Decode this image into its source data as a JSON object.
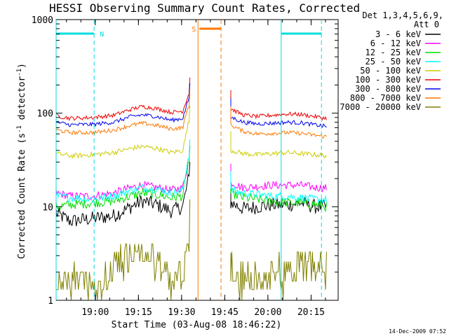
{
  "chart_data": {
    "type": "line",
    "title": "HESSI Observing Summary Count Rates, Corrected",
    "xlabel": "Start Time (03-Aug-08 18:46:22)",
    "ylabel": "Corrected Count Rate (s",
    "ylabel_sup1": "-1",
    "ylabel_mid": " detector",
    "ylabel_sup2": "-1",
    "ylabel_end": ")",
    "x_unit": "minutes after 18:46:22 UT",
    "xlim": [
      0,
      98
    ],
    "ylim": [
      1,
      1000
    ],
    "yscale": "log",
    "xticks": [
      {
        "value": 13.6,
        "label": "19:00"
      },
      {
        "value": 28.6,
        "label": "19:15"
      },
      {
        "value": 43.6,
        "label": "19:30"
      },
      {
        "value": 58.6,
        "label": "19:45"
      },
      {
        "value": 73.6,
        "label": "20:00"
      },
      {
        "value": 88.6,
        "label": "20:15"
      }
    ],
    "yticks": [
      {
        "value": 1,
        "label": "1"
      },
      {
        "value": 10,
        "label": "10"
      },
      {
        "value": 100,
        "label": "100"
      },
      {
        "value": 1000,
        "label": "1000"
      }
    ],
    "legend": {
      "header_line1": "Det 1,3,4,5,6,9,",
      "header_line2": "Att 0",
      "placement": "right"
    },
    "series": [
      {
        "name": "3 - 6 keV",
        "color": "#000000",
        "values_by_x": {
          "x": [
            0,
            5,
            13,
            20,
            26,
            30,
            35,
            40,
            44,
            46
          ],
          "y": [
            8.5,
            7,
            7.5,
            8,
            10,
            11.5,
            10.5,
            9,
            10,
            20
          ]
        },
        "post_x": [
          61,
          65,
          70,
          75,
          80,
          85,
          90,
          94
        ],
        "post_y": [
          11,
          9.5,
          10,
          10.5,
          10.5,
          11,
          10,
          10
        ]
      },
      {
        "name": "6 - 12 keV",
        "color": "#ff00ff",
        "values_by_x": {
          "x": [
            0,
            5,
            13,
            20,
            26,
            30,
            35,
            40,
            44,
            46
          ],
          "y": [
            14,
            13,
            13,
            14,
            16,
            17,
            16,
            15,
            16,
            30
          ]
        },
        "post_x": [
          61,
          65,
          70,
          75,
          80,
          85,
          90,
          94
        ],
        "post_y": [
          18,
          16,
          16.5,
          17,
          17,
          17,
          16,
          16
        ]
      },
      {
        "name": "12 - 25 keV",
        "color": "#00dd00",
        "values_by_x": {
          "x": [
            0,
            5,
            13,
            20,
            26,
            30,
            35,
            40,
            44,
            46
          ],
          "y": [
            10,
            10.5,
            11,
            11.5,
            13,
            14,
            13.5,
            12.5,
            13,
            30
          ]
        },
        "post_x": [
          61,
          65,
          70,
          75,
          80,
          85,
          90,
          94
        ],
        "post_y": [
          14,
          12.5,
          12,
          11.5,
          11,
          11,
          10.5,
          10
        ]
      },
      {
        "name": "25 - 50 keV",
        "color": "#00ffff",
        "values_by_x": {
          "x": [
            0,
            5,
            13,
            20,
            26,
            30,
            35,
            40,
            44,
            46
          ],
          "y": [
            13,
            12.5,
            12,
            13,
            15,
            16,
            15.5,
            14,
            15,
            35
          ]
        },
        "post_x": [
          61,
          65,
          70,
          75,
          80,
          85,
          90,
          94
        ],
        "post_y": [
          15,
          14,
          13.5,
          13,
          13,
          12.5,
          12,
          12
        ]
      },
      {
        "name": "50 - 100 keV",
        "color": "#cccc00",
        "values_by_x": {
          "x": [
            0,
            5,
            13,
            20,
            26,
            30,
            35,
            40,
            44,
            46
          ],
          "y": [
            37,
            35,
            36,
            38,
            42,
            44,
            42,
            38,
            40,
            80
          ]
        },
        "post_x": [
          61,
          65,
          70,
          75,
          80,
          85,
          90,
          94
        ],
        "post_y": [
          40,
          37,
          36,
          37,
          38,
          37,
          36,
          35
        ]
      },
      {
        "name": "100 - 300 keV",
        "color": "#ee0000",
        "values_by_x": {
          "x": [
            0,
            5,
            13,
            20,
            26,
            30,
            35,
            40,
            44,
            46
          ],
          "y": [
            94,
            88,
            90,
            95,
            110,
            118,
            112,
            102,
            105,
            160
          ]
        },
        "post_x": [
          61,
          65,
          70,
          75,
          80,
          85,
          90,
          94
        ],
        "post_y": [
          110,
          96,
          92,
          95,
          98,
          97,
          92,
          88
        ]
      },
      {
        "name": "300 - 800 keV",
        "color": "#0000ee",
        "values_by_x": {
          "x": [
            0,
            5,
            13,
            20,
            26,
            30,
            35,
            40,
            44,
            46
          ],
          "y": [
            80,
            75,
            76,
            80,
            92,
            96,
            92,
            84,
            88,
            140
          ]
        },
        "post_x": [
          61,
          65,
          70,
          75,
          80,
          85,
          90,
          94
        ],
        "post_y": [
          90,
          80,
          77,
          78,
          80,
          79,
          75,
          72
        ]
      },
      {
        "name": "800 - 7000 keV",
        "color": "#ff7700",
        "values_by_x": {
          "x": [
            0,
            5,
            13,
            20,
            26,
            30,
            35,
            40,
            44,
            46
          ],
          "y": [
            66,
            62,
            62,
            66,
            74,
            78,
            74,
            68,
            70,
            120
          ]
        },
        "post_x": [
          61,
          65,
          70,
          75,
          80,
          85,
          90,
          94
        ],
        "post_y": [
          74,
          64,
          60,
          61,
          62,
          61,
          58,
          56
        ]
      },
      {
        "name": "7000 - 20000 keV",
        "color": "#808000",
        "values_by_x": {
          "x": [
            0,
            5,
            13,
            20,
            26,
            30,
            35,
            40,
            44,
            46
          ],
          "y": [
            1.4,
            1.6,
            1.3,
            2.3,
            3.3,
            3.5,
            2.6,
            1.6,
            1.7,
            8
          ]
        },
        "post_x": [
          61,
          65,
          70,
          75,
          80,
          85,
          90,
          94
        ],
        "post_y": [
          2.0,
          1.5,
          1.6,
          1.7,
          1.8,
          2.3,
          2.6,
          2.0
        ]
      }
    ],
    "annotations": [
      {
        "kind": "night",
        "label": "N",
        "x_start": 0,
        "x_end": 13.2,
        "color": "#00dddd"
      },
      {
        "kind": "night",
        "label": "",
        "x_start": 78.2,
        "x_end": 92.2,
        "color": "#00dddd"
      },
      {
        "kind": "saa",
        "label": "S",
        "x_start": 49.3,
        "x_end": 57.3,
        "color": "#ff7700"
      }
    ],
    "footer_date": "14-Dec-2009 07:52"
  }
}
